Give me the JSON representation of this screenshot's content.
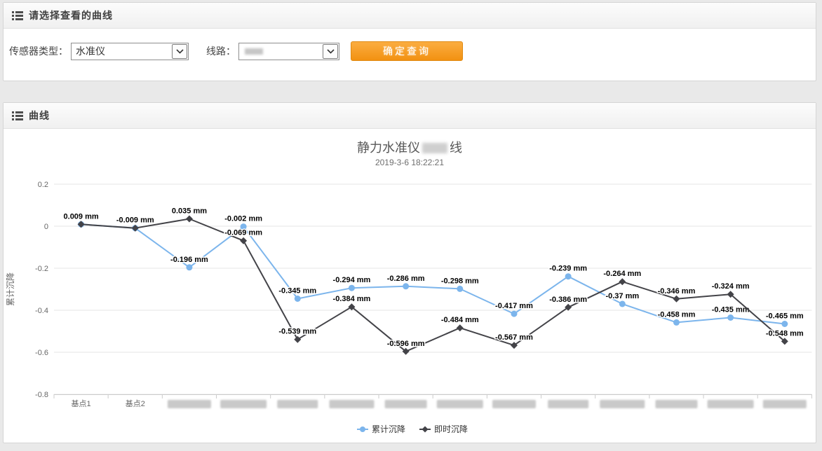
{
  "filter_panel": {
    "header_title": "请选择查看的曲线",
    "sensor_type_label": "传感器类型：",
    "sensor_type_value": "水准仪",
    "line_label": "线路：",
    "line_value_redacted": true,
    "query_button_label": "确定查询",
    "accent_color": "#f5941f"
  },
  "curve_panel": {
    "header_title": "曲线"
  },
  "chart_data": {
    "type": "line",
    "title_prefix": "静力水准仪",
    "title_redacted_segment": true,
    "title_suffix": "线",
    "subtitle": "2019-3-6 18:22:21",
    "ylabel": "累计沉降",
    "unit": "mm",
    "ylim": [
      -0.8,
      0.2
    ],
    "yticks": [
      0.2,
      0,
      -0.2,
      -0.4,
      -0.6,
      -0.8
    ],
    "grid": true,
    "legend_position": "bottom-center",
    "categories": [
      "基点1",
      "基点2",
      "",
      "",
      "",
      "",
      "",
      "",
      "",
      "",
      "",
      "",
      "",
      ""
    ],
    "redacted_categories_start_index": 2,
    "series": [
      {
        "name": "累计沉降",
        "color": "#7cb5ec",
        "marker": "circle",
        "values": [
          0.009,
          -0.009,
          -0.196,
          -0.002,
          -0.345,
          -0.294,
          -0.286,
          -0.298,
          -0.417,
          -0.239,
          -0.37,
          -0.458,
          -0.435,
          -0.465
        ]
      },
      {
        "name": "即时沉降",
        "color": "#434348",
        "marker": "diamond",
        "values": [
          0.009,
          -0.009,
          0.035,
          -0.069,
          -0.539,
          -0.384,
          -0.596,
          -0.484,
          -0.567,
          -0.386,
          -0.264,
          -0.346,
          -0.324,
          -0.548
        ],
        "hidden_label_indices": [
          0,
          1
        ]
      }
    ]
  }
}
